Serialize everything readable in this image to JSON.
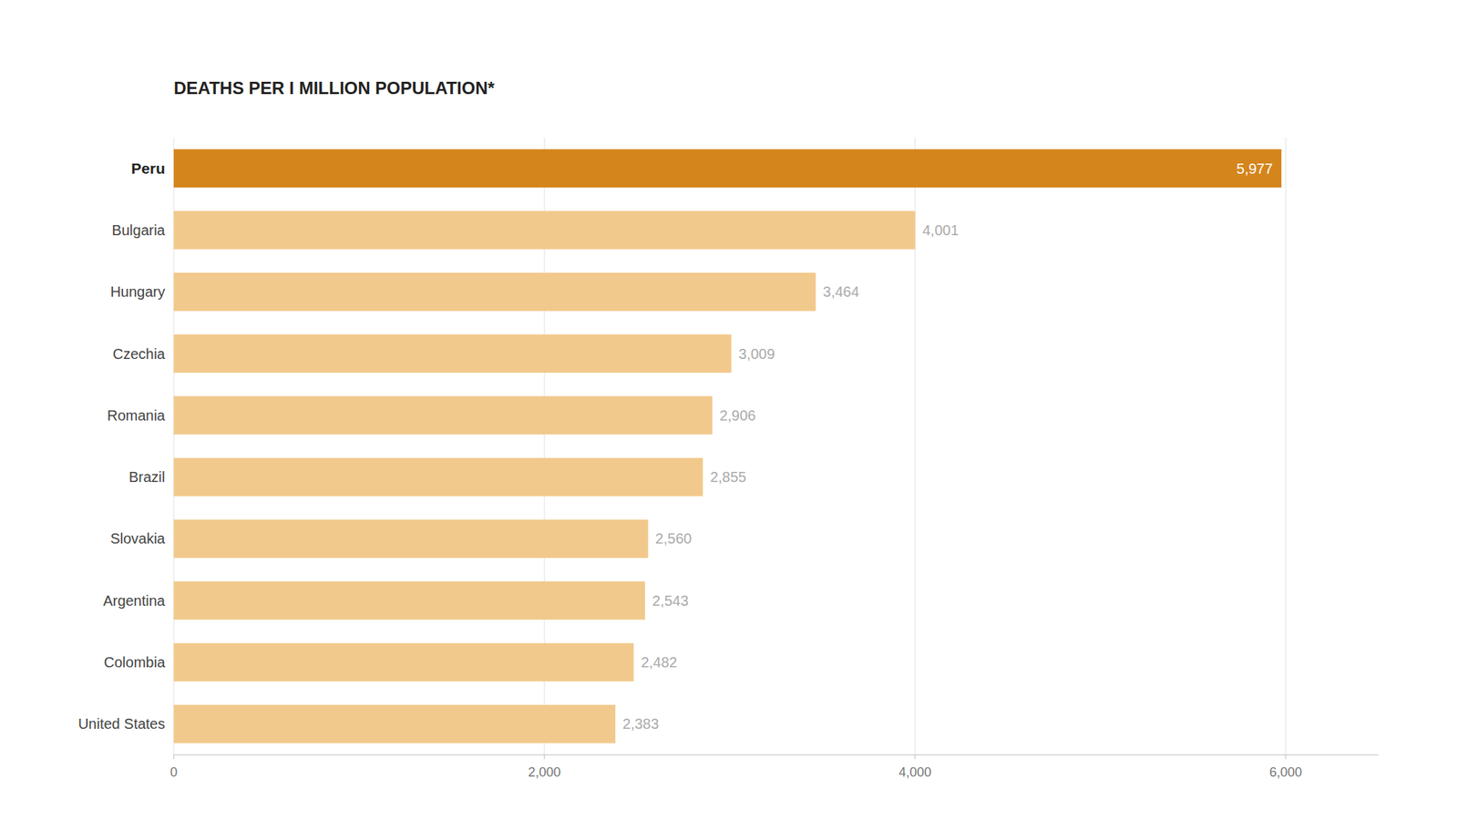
{
  "chart_data": {
    "type": "bar",
    "orientation": "horizontal",
    "title": "DEATHS PER I MILLION POPULATION*",
    "categories": [
      "Peru",
      "Bulgaria",
      "Hungary",
      "Czechia",
      "Romania",
      "Brazil",
      "Slovakia",
      "Argentina",
      "Colombia",
      "United States"
    ],
    "values": [
      5977,
      4001,
      3464,
      3009,
      2906,
      2855,
      2560,
      2543,
      2482,
      2383
    ],
    "value_labels": [
      "5,977",
      "4,001",
      "3,464",
      "3,009",
      "2,906",
      "2,855",
      "2,560",
      "2,543",
      "2,482",
      "2,383"
    ],
    "colors": [
      "#D4851C",
      "#F2C98C",
      "#F2C98C",
      "#F2C98C",
      "#F2C98C",
      "#F2C98C",
      "#F2C98C",
      "#F2C98C",
      "#F2C98C",
      "#F2C98C"
    ],
    "data_labels": true,
    "xlim": [
      0,
      6500
    ],
    "xticks": [
      0,
      {
        "value": 2000,
        "label": "2,000"
      },
      {
        "value": 4000,
        "label": "4,000"
      },
      {
        "value": 6000,
        "label": "6,000"
      }
    ],
    "grid": true
  }
}
